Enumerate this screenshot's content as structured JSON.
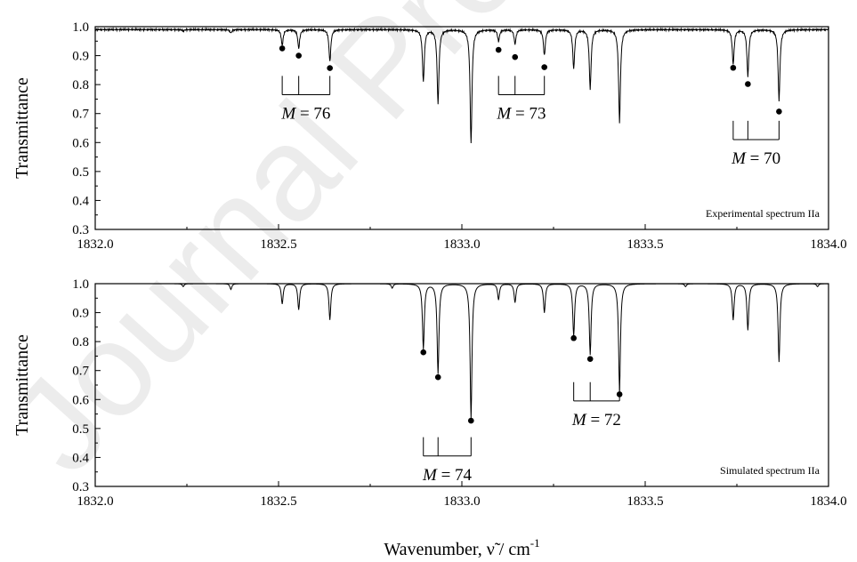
{
  "chart_data": [
    {
      "type": "line",
      "panel_label": "Experimental spectrum IIa",
      "ylabel": "Transmittance",
      "xlim": [
        1832.0,
        1834.0
      ],
      "ylim": [
        0.3,
        1.0
      ],
      "x_ticks": [
        "1832.0",
        "1832.5",
        "1833.0",
        "1833.5",
        "1834.0"
      ],
      "y_ticks": [
        "0.3",
        "0.4",
        "0.5",
        "0.6",
        "0.7",
        "0.8",
        "0.9",
        "1.0"
      ],
      "baseline": 0.99,
      "peaks": [
        {
          "x": 1832.24,
          "y": 0.985,
          "w": 0.003
        },
        {
          "x": 1832.37,
          "y": 0.978,
          "w": 0.003
        },
        {
          "x": 1832.51,
          "y": 0.935,
          "w": 0.003
        },
        {
          "x": 1832.555,
          "y": 0.925,
          "w": 0.003
        },
        {
          "x": 1832.64,
          "y": 0.88,
          "w": 0.003
        },
        {
          "x": 1832.895,
          "y": 0.81,
          "w": 0.003
        },
        {
          "x": 1832.935,
          "y": 0.735,
          "w": 0.003
        },
        {
          "x": 1833.025,
          "y": 0.595,
          "w": 0.003
        },
        {
          "x": 1833.1,
          "y": 0.95,
          "w": 0.003
        },
        {
          "x": 1833.145,
          "y": 0.94,
          "w": 0.003
        },
        {
          "x": 1833.225,
          "y": 0.9,
          "w": 0.003
        },
        {
          "x": 1833.305,
          "y": 0.855,
          "w": 0.003
        },
        {
          "x": 1833.35,
          "y": 0.785,
          "w": 0.003
        },
        {
          "x": 1833.43,
          "y": 0.67,
          "w": 0.003
        },
        {
          "x": 1833.74,
          "y": 0.87,
          "w": 0.003
        },
        {
          "x": 1833.78,
          "y": 0.83,
          "w": 0.003
        },
        {
          "x": 1833.865,
          "y": 0.745,
          "w": 0.003
        }
      ],
      "markers": [
        {
          "x": 1832.51,
          "y": 0.925
        },
        {
          "x": 1832.555,
          "y": 0.9
        },
        {
          "x": 1832.64,
          "y": 0.857
        },
        {
          "x": 1833.1,
          "y": 0.92
        },
        {
          "x": 1833.145,
          "y": 0.895
        },
        {
          "x": 1833.225,
          "y": 0.86
        },
        {
          "x": 1833.74,
          "y": 0.858
        },
        {
          "x": 1833.78,
          "y": 0.802
        },
        {
          "x": 1833.865,
          "y": 0.707
        }
      ],
      "groups": [
        {
          "label": "M",
          "value": "= 76",
          "lines": [
            1832.51,
            1832.555,
            1832.64
          ],
          "bar_y": 0.765,
          "top_y": 0.83,
          "label_y": 0.7
        },
        {
          "label": "M",
          "value": "= 73",
          "lines": [
            1833.1,
            1833.145,
            1833.225
          ],
          "bar_y": 0.765,
          "top_y": 0.83,
          "label_y": 0.7
        },
        {
          "label": "M",
          "value": "= 70",
          "lines": [
            1833.74,
            1833.78,
            1833.865
          ],
          "bar_y": 0.61,
          "top_y": 0.675,
          "label_y": 0.545
        }
      ]
    },
    {
      "type": "line",
      "panel_label": "Simulated spectrum IIa",
      "ylabel": "Transmittance",
      "xlim": [
        1832.0,
        1834.0
      ],
      "ylim": [
        0.3,
        1.0
      ],
      "x_ticks": [
        "1832.0",
        "1832.5",
        "1833.0",
        "1833.5",
        "1834.0"
      ],
      "y_ticks": [
        "0.3",
        "0.4",
        "0.5",
        "0.6",
        "0.7",
        "0.8",
        "0.9",
        "1.0"
      ],
      "baseline": 1.0,
      "peaks": [
        {
          "x": 1832.24,
          "y": 0.99,
          "w": 0.003
        },
        {
          "x": 1832.37,
          "y": 0.98,
          "w": 0.003
        },
        {
          "x": 1832.51,
          "y": 0.93,
          "w": 0.003
        },
        {
          "x": 1832.555,
          "y": 0.91,
          "w": 0.003
        },
        {
          "x": 1832.64,
          "y": 0.875,
          "w": 0.003
        },
        {
          "x": 1832.81,
          "y": 0.985,
          "w": 0.003
        },
        {
          "x": 1832.895,
          "y": 0.775,
          "w": 0.003
        },
        {
          "x": 1832.935,
          "y": 0.69,
          "w": 0.003
        },
        {
          "x": 1833.025,
          "y": 0.535,
          "w": 0.003
        },
        {
          "x": 1833.1,
          "y": 0.945,
          "w": 0.003
        },
        {
          "x": 1833.145,
          "y": 0.935,
          "w": 0.003
        },
        {
          "x": 1833.225,
          "y": 0.9,
          "w": 0.003
        },
        {
          "x": 1833.305,
          "y": 0.82,
          "w": 0.003
        },
        {
          "x": 1833.35,
          "y": 0.755,
          "w": 0.003
        },
        {
          "x": 1833.43,
          "y": 0.63,
          "w": 0.003
        },
        {
          "x": 1833.61,
          "y": 0.99,
          "w": 0.003
        },
        {
          "x": 1833.74,
          "y": 0.875,
          "w": 0.003
        },
        {
          "x": 1833.78,
          "y": 0.84,
          "w": 0.003
        },
        {
          "x": 1833.865,
          "y": 0.73,
          "w": 0.003
        },
        {
          "x": 1833.97,
          "y": 0.99,
          "w": 0.003
        }
      ],
      "markers": [
        {
          "x": 1832.895,
          "y": 0.763
        },
        {
          "x": 1832.935,
          "y": 0.677
        },
        {
          "x": 1833.025,
          "y": 0.527
        },
        {
          "x": 1833.305,
          "y": 0.812
        },
        {
          "x": 1833.35,
          "y": 0.74
        },
        {
          "x": 1833.43,
          "y": 0.618
        }
      ],
      "groups": [
        {
          "label": "M",
          "value": "= 74",
          "lines": [
            1832.895,
            1832.935,
            1833.025
          ],
          "bar_y": 0.405,
          "top_y": 0.47,
          "label_y": 0.34
        },
        {
          "label": "M",
          "value": "= 72",
          "lines": [
            1833.305,
            1833.35,
            1833.43
          ],
          "bar_y": 0.595,
          "top_y": 0.66,
          "label_y": 0.53
        }
      ]
    }
  ],
  "shared_xlabel": {
    "prefix": "Wavenumber, ",
    "symbol": "ν̃",
    "mid": " / cm",
    "sup": "-1"
  },
  "watermark": "Journal Pre-proof"
}
